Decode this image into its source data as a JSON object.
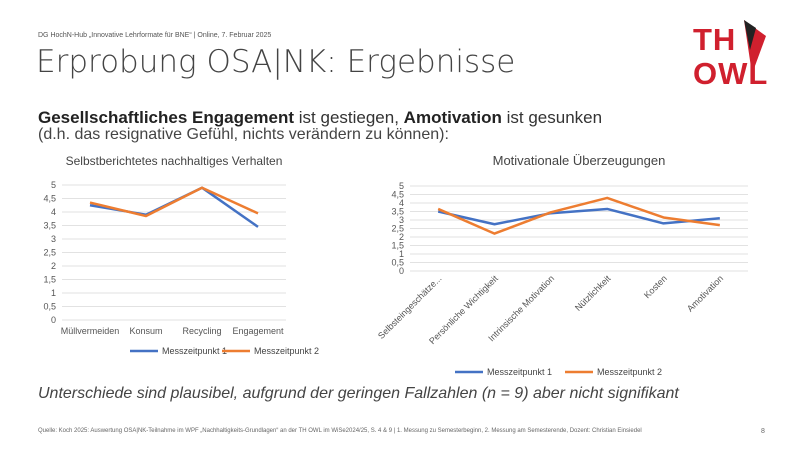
{
  "header": "DG HochN-Hub „Innovative Lehrformate für BNE“ | Online, 7. Februar 2025",
  "title": "Erprobung OSA|NK: Ergebnisse",
  "subtitle": {
    "part1": "Gesellschaftliches Engagement",
    "part2": " ist gestiegen, ",
    "part3": "Amotivation",
    "part4": " ist gesunken",
    "line2": "(d.h. das resignative Gefühl, nichts verändern zu können):"
  },
  "conclusion": "Unterschiede sind plausibel, aufgrund der geringen Fallzahlen (n = 9) aber nicht signifikant",
  "footer": "Quelle: Koch 2025: Auswertung OSA|NK-Teilnahme im WPF „Nachhaltigkeits-Grundlagen“ an der TH OWL im WiSe2024/25, S. 4 & 9 | 1. Messung zu Semesterbeginn, 2. Messung am Semesterende, Dozent: Christian Einsiedel",
  "page_number": "8",
  "logo": {
    "line1": "TH",
    "line2": "OWL"
  },
  "chart_data": [
    {
      "type": "line",
      "title": "Selbstberichtetes nachhaltiges Verhalten",
      "categories": [
        "Müllvermeiden",
        "Konsum",
        "Recycling",
        "Engagement"
      ],
      "series": [
        {
          "name": "Messzeitpunkt 1",
          "color": "#4472c4",
          "values": [
            4.25,
            3.9,
            4.9,
            3.45
          ]
        },
        {
          "name": "Messzeitpunkt 2",
          "color": "#ed7d31",
          "values": [
            4.35,
            3.85,
            4.9,
            3.95
          ]
        }
      ],
      "ylim": [
        0,
        5
      ],
      "yticks": [
        0,
        {
          "value": 0.5,
          "label": "0,5"
        },
        1,
        {
          "value": 1.5,
          "label": "1,5"
        },
        2,
        {
          "value": 2.5,
          "label": "2,5"
        },
        3,
        {
          "value": 3.5,
          "label": "3,5"
        },
        4,
        {
          "value": 4.5,
          "label": "4,5"
        },
        5
      ],
      "grid": true,
      "legend": "bottom"
    },
    {
      "type": "line",
      "title": "Motivationale Überzeugungen",
      "categories": [
        "Selbsteingeschätze...",
        "Persönliche Wichtigkeit",
        "Intrinsische Motivation",
        "Nützlichkeit",
        "Kosten",
        "Amotivation"
      ],
      "series": [
        {
          "name": "Messzeitpunkt 1",
          "color": "#4472c4",
          "values": [
            3.5,
            2.75,
            3.4,
            3.65,
            2.8,
            3.1
          ]
        },
        {
          "name": "Messzeitpunkt 2",
          "color": "#ed7d31",
          "values": [
            3.65,
            2.2,
            3.45,
            4.3,
            3.15,
            2.7
          ]
        }
      ],
      "ylim": [
        0,
        5
      ],
      "yticks": [
        0,
        {
          "value": 0.5,
          "label": "0,5"
        },
        1,
        {
          "value": 1.5,
          "label": "1,5"
        },
        2,
        {
          "value": 2.5,
          "label": "2,5"
        },
        3,
        {
          "value": 3.5,
          "label": "3,5"
        },
        4,
        {
          "value": 4.5,
          "label": "4,5"
        },
        5
      ],
      "grid": true,
      "legend": "bottom"
    }
  ]
}
